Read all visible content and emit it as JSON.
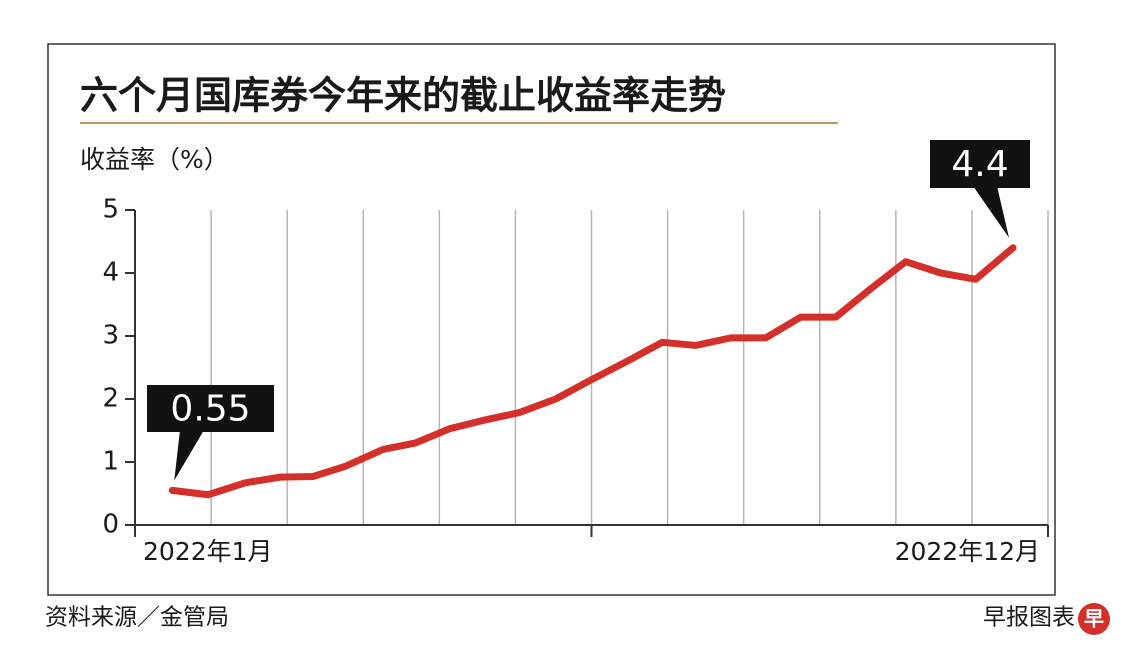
{
  "chart_data": {
    "type": "line",
    "title": "六个月国库券今年来的截止收益率走势",
    "y_label": "收益率（%）",
    "x": [
      0.49,
      0.96,
      1.45,
      1.91,
      2.34,
      2.76,
      3.26,
      3.68,
      4.14,
      4.61,
      5.04,
      5.53,
      5.99,
      6.47,
      6.93,
      7.37,
      7.83,
      8.29,
      8.75,
      9.21,
      9.67,
      10.13,
      10.59,
      11.05,
      11.54
    ],
    "values": [
      0.55,
      0.48,
      0.67,
      0.76,
      0.77,
      0.93,
      1.2,
      1.3,
      1.53,
      1.67,
      1.78,
      2.0,
      2.3,
      2.6,
      2.9,
      2.85,
      2.97,
      2.97,
      3.3,
      3.3,
      3.75,
      4.18,
      4.0,
      3.9,
      4.4
    ],
    "color": "#d42f28",
    "xlim": [
      0,
      12
    ],
    "xticks": [
      {
        "value": 0,
        "label": "2022年1月"
      },
      {
        "value": 12,
        "label": "2022年12月"
      }
    ],
    "ylim": [
      0,
      5
    ],
    "yticks": [
      0,
      1,
      2,
      3,
      4,
      5
    ],
    "grid": true,
    "annotations": [
      {
        "text": "0.55"
      },
      {
        "text": "4.4"
      }
    ],
    "source": "资料来源／金管局",
    "credit": "早报图表",
    "logo": "早"
  }
}
